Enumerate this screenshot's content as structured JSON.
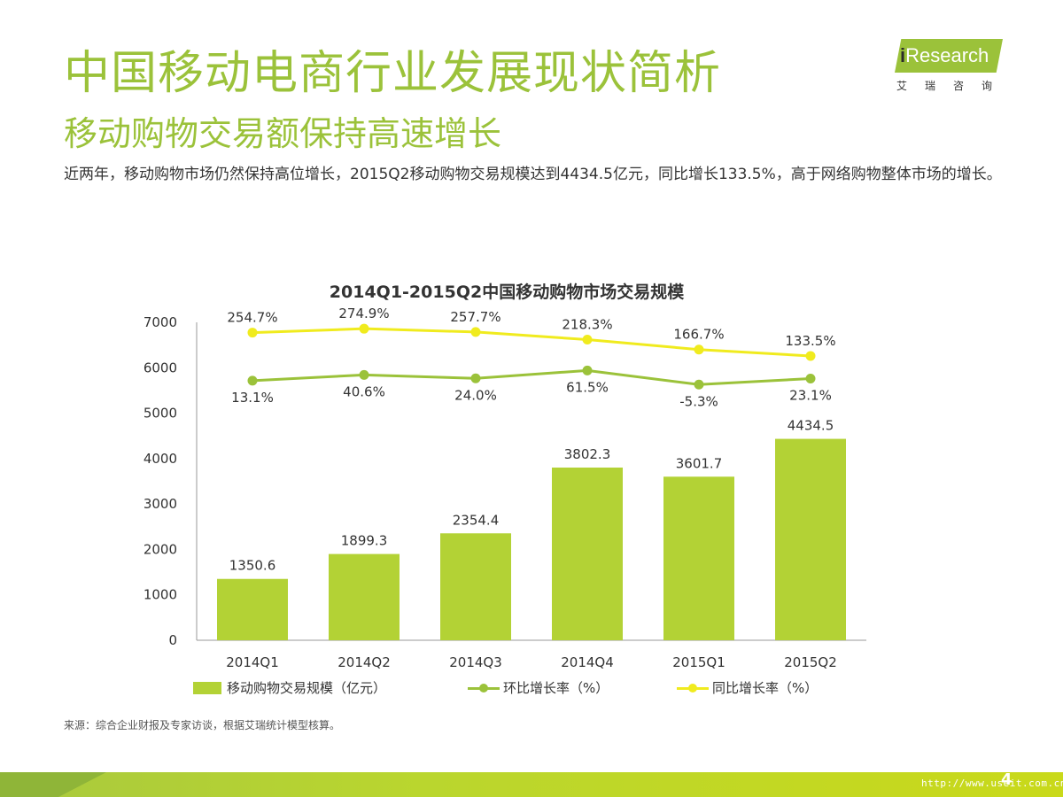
{
  "header": {
    "title": "中国移动电商行业发展现状简析",
    "subtitle": "移动购物交易额保持高速增长",
    "summary": "近两年，移动购物市场仍然保持高位增长，2015Q2移动购物交易规模达到4434.5亿元，同比增长133.5%，高于网络购物整体市场的增长。"
  },
  "logo": {
    "i": "i",
    "text": "Research",
    "cn": "艾瑞咨询"
  },
  "chart_data": {
    "type": "bar",
    "title": "2014Q1-2015Q2中国移动购物市场交易规模",
    "categories": [
      "2014Q1",
      "2014Q2",
      "2014Q3",
      "2014Q4",
      "2015Q1",
      "2015Q2"
    ],
    "ylim": [
      0,
      7000
    ],
    "yticks": [
      0,
      1000,
      2000,
      3000,
      4000,
      5000,
      6000,
      7000
    ],
    "series": [
      {
        "name": "移动购物交易规模（亿元）",
        "kind": "bar",
        "values": [
          1350.6,
          1899.3,
          2354.4,
          3802.3,
          3601.7,
          4434.5
        ],
        "labels": [
          "1350.6",
          "1899.3",
          "2354.4",
          "3802.3",
          "3601.7",
          "4434.5"
        ],
        "color": "#b3d235"
      },
      {
        "name": "环比增长率（%）",
        "kind": "line",
        "values": [
          13.1,
          40.6,
          24.0,
          61.5,
          -5.3,
          23.1
        ],
        "labels": [
          "13.1%",
          "40.6%",
          "24.0%",
          "61.5%",
          "-5.3%",
          "23.1%"
        ],
        "color": "#9bc23a"
      },
      {
        "name": "同比增长率（%）",
        "kind": "line",
        "values": [
          254.7,
          274.9,
          257.7,
          218.3,
          166.7,
          133.5
        ],
        "labels": [
          "254.7%",
          "274.9%",
          "257.7%",
          "218.3%",
          "166.7%",
          "133.5%"
        ],
        "color": "#f0eb1e"
      }
    ]
  },
  "source": "来源：综合企业财报及专家访谈，根据艾瑞统计模型核算。",
  "footer": {
    "page": "4",
    "watermark": "http://www.useit.com.cn"
  }
}
